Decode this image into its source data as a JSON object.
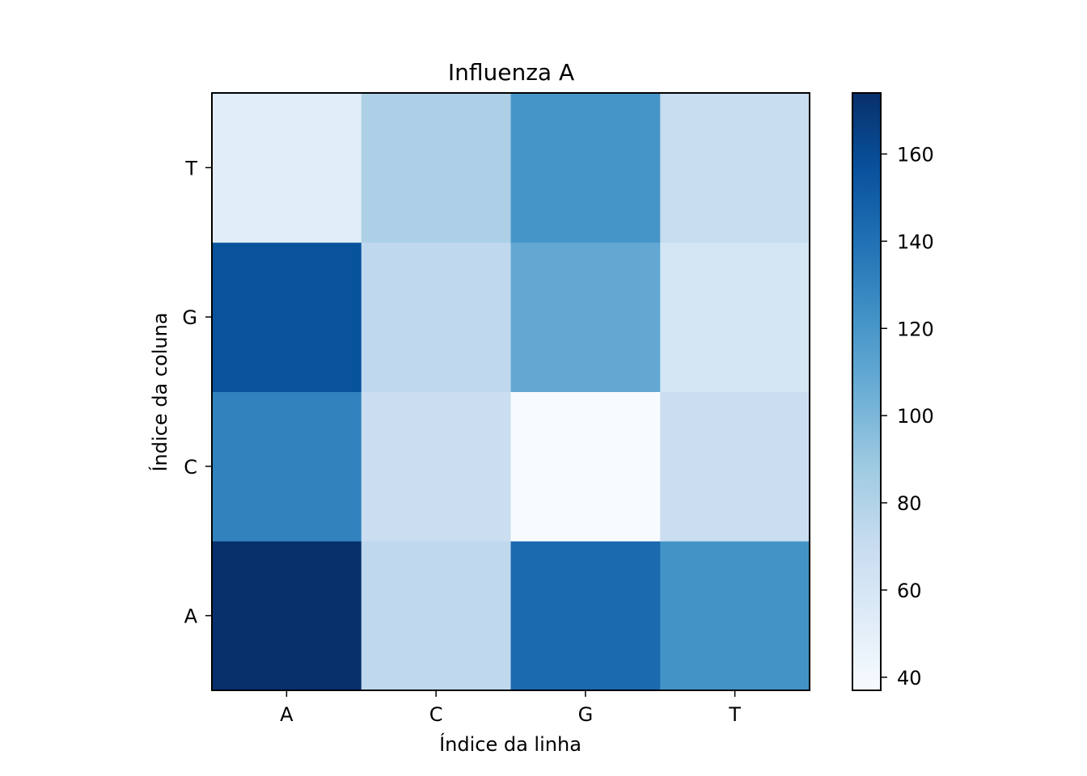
{
  "chart_data": {
    "type": "heatmap",
    "title": "Influenza A",
    "xlabel": "Índice da linha",
    "ylabel": "Índice da coluna",
    "x_categories": [
      "A",
      "C",
      "G",
      "T"
    ],
    "y_categories": [
      "A",
      "C",
      "G",
      "T"
    ],
    "values": [
      [
        174,
        74,
        144,
        122
      ],
      [
        131,
        68,
        37,
        68
      ],
      [
        156,
        74,
        109,
        61
      ],
      [
        52,
        82,
        121,
        69
      ]
    ],
    "colormap": "Blues",
    "vmin": 37,
    "vmax": 174,
    "colorbar": {
      "ticks": [
        40,
        60,
        80,
        100,
        120,
        140,
        160
      ]
    },
    "grid": false
  }
}
